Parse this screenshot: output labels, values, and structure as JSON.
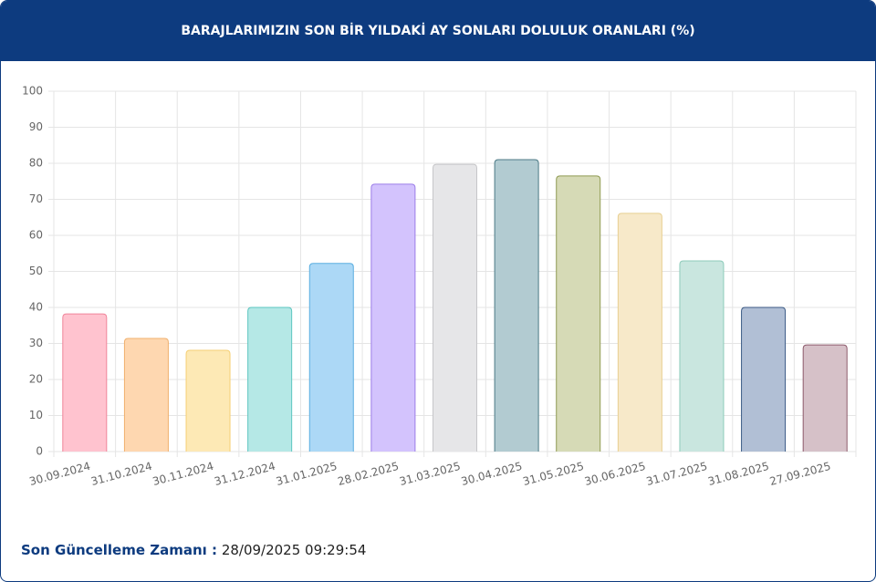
{
  "chart_data": {
    "type": "bar",
    "title": "BARAJLARIMIZIN SON BİR YILDAKİ AY SONLARI DOLULUK ORANLARI (%)",
    "categories": [
      "30.09.2024",
      "31.10.2024",
      "30.11.2024",
      "31.12.2024",
      "31.01.2025",
      "28.02.2025",
      "31.03.2025",
      "30.04.2025",
      "31.05.2025",
      "30.06.2025",
      "31.07.2025",
      "31.08.2025",
      "27.09.2025"
    ],
    "values": [
      38.2,
      31.4,
      28.1,
      40.0,
      52.2,
      74.2,
      79.7,
      81.0,
      76.5,
      66.1,
      52.9,
      40.0,
      29.6
    ],
    "colors": [
      "#ffc3cf",
      "#fed7b0",
      "#fde9b5",
      "#b5e8e6",
      "#acd8f6",
      "#d3c3fd",
      "#e6e6e8",
      "#b2cbd1",
      "#d6dab6",
      "#f7e9c9",
      "#c9e6df",
      "#b1bfd5",
      "#d6c1c8"
    ],
    "border_colors": [
      "#f0849a",
      "#f0b06e",
      "#f5cf74",
      "#5cc6c0",
      "#5aaee0",
      "#9b7de8",
      "#c6c6c9",
      "#4c7a86",
      "#8f9a52",
      "#e8cf92",
      "#8dcbba",
      "#3b5a85",
      "#8d5a6b"
    ],
    "ylim": [
      0,
      100
    ],
    "yticks": [
      0,
      10,
      20,
      30,
      40,
      50,
      60,
      70,
      80,
      90,
      100
    ],
    "grid": true
  },
  "footer": {
    "label": "Son Güncelleme Zamanı :",
    "value": "28/09/2025 09:29:54"
  }
}
